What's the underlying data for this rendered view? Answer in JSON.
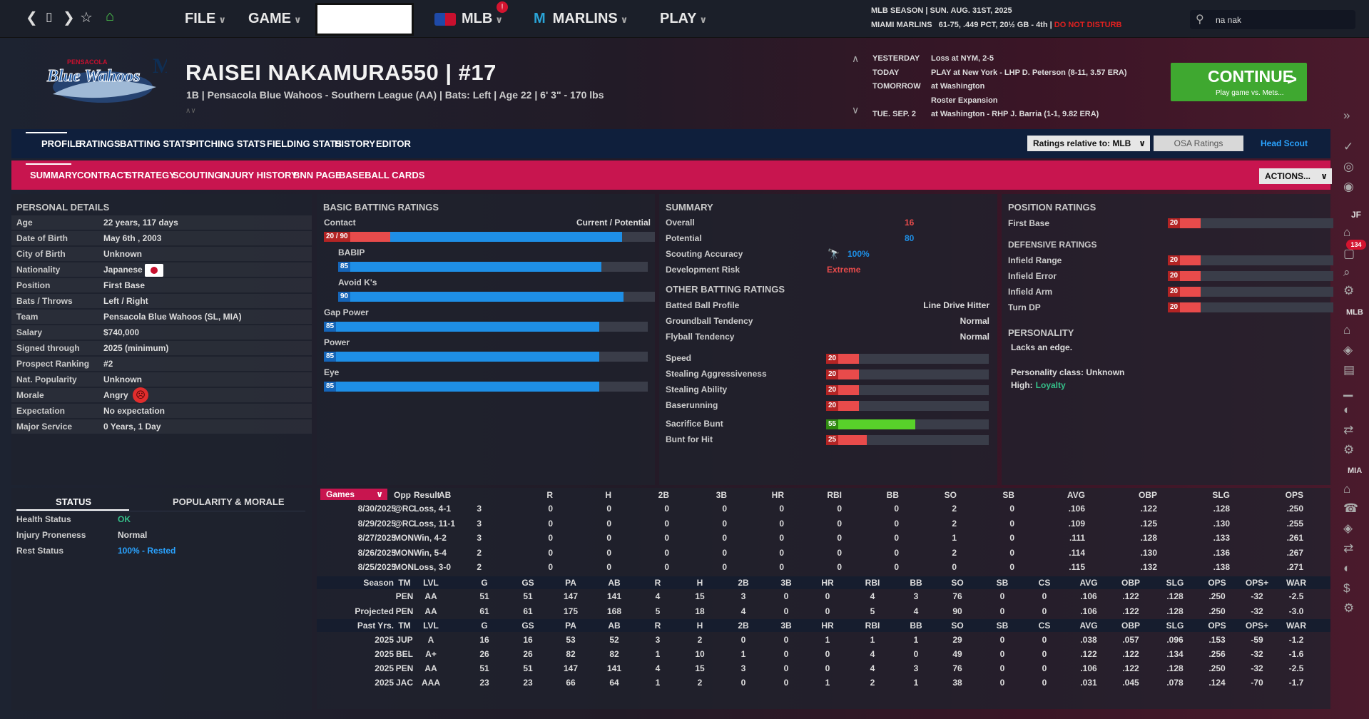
{
  "topbar": {
    "file": "FILE",
    "game": "GAME",
    "mlb": "MLB",
    "mlb_badge": "!",
    "marlins": "MARLINS",
    "play": "PLAY",
    "search_value": "na nak"
  },
  "season": {
    "line1": "MLB SEASON  |  SUN. AUG. 31ST, 2025",
    "team": "MIAMI MARLINS",
    "record": "61-75, .449 PCT, 20½ GB - 4th",
    "dnd": "DO NOT DISTURB"
  },
  "player": {
    "name": "RAISEI NAKAMURA550  |  #17",
    "info": "1B | Pensacola Blue Wahoos - Southern League (AA)  |  Bats: Left  |  Age 22  |  6' 3\" - 170 lbs",
    "logo_text": "Blue Wahoos",
    "logo_sub": "PENSACOLA"
  },
  "schedule": [
    {
      "day": "YESTERDAY",
      "text": "Loss at NYM, 2-5"
    },
    {
      "day": "TODAY",
      "text": "PLAY at New York - LHP D. Peterson (8-11, 3.57 ERA)"
    },
    {
      "day": "TOMORROW",
      "text": "at Washington"
    },
    {
      "day": "",
      "text": "Roster Expansion"
    },
    {
      "day": "TUE. SEP. 2",
      "text": "at Washington - RHP J. Barria (1-1, 9.82 ERA)"
    }
  ],
  "continue": {
    "label": "CONTINUE",
    "sub": "Play game vs. Mets..."
  },
  "tabs1": [
    "PROFILE",
    "RATINGS",
    "BATTING STATS",
    "PITCHING STATS",
    "FIELDING STATS",
    "HISTORY",
    "EDITOR"
  ],
  "tabs2": [
    "SUMMARY",
    "CONTRACT",
    "STRATEGY",
    "SCOUTING",
    "INJURY HISTORY",
    "BNN PAGE",
    "BASEBALL CARDS"
  ],
  "ratings_relative": "Ratings relative to: MLB",
  "osa_ratings": "OSA Ratings",
  "head_scout": "Head Scout",
  "actions": "ACTIONS...",
  "personal": {
    "title": "PERSONAL DETAILS",
    "rows": [
      [
        "Age",
        "22 years, 117 days"
      ],
      [
        "Date of Birth",
        "May 6th , 2003"
      ],
      [
        "City of Birth",
        "Unknown"
      ],
      [
        "Nationality",
        "Japanese"
      ],
      [
        "Position",
        "First Base"
      ],
      [
        "Bats / Throws",
        "Left / Right"
      ],
      [
        "Team",
        "Pensacola Blue Wahoos (SL, MIA)"
      ],
      [
        "Salary",
        "$740,000"
      ],
      [
        "Signed through",
        "2025 (minimum)"
      ],
      [
        "Prospect Ranking",
        "#2"
      ],
      [
        "Nat. Popularity",
        "Unknown"
      ],
      [
        "Morale",
        "Angry"
      ],
      [
        "Expectation",
        "No expectation"
      ],
      [
        "Major Service",
        "0 Years, 1 Day"
      ]
    ]
  },
  "batting": {
    "title": "BASIC BATTING RATINGS",
    "cur_pot": "Current / Potential",
    "items": [
      {
        "label": "Contact",
        "value": "20 / 90",
        "cur": 20,
        "pot": 90
      },
      {
        "label": "BABIP",
        "value": "85",
        "cur": 85,
        "pot": 85
      },
      {
        "label": "Avoid K's",
        "value": "90",
        "cur": 90,
        "pot": 90
      },
      {
        "label": "Gap Power",
        "value": "85",
        "cur": 85,
        "pot": 85
      },
      {
        "label": "Power",
        "value": "85",
        "cur": 85,
        "pot": 85
      },
      {
        "label": "Eye",
        "value": "85",
        "cur": 85,
        "pot": 85
      }
    ]
  },
  "summary": {
    "title": "SUMMARY",
    "overall_label": "Overall",
    "overall": "16",
    "potential_label": "Potential",
    "potential": "80",
    "scout_label": "Scouting Accuracy",
    "scout": "100%",
    "risk_label": "Development Risk",
    "risk": "Extreme",
    "other_title": "OTHER BATTING RATINGS",
    "other": [
      [
        "Batted Ball Profile",
        "Line Drive Hitter"
      ],
      [
        "Groundball Tendency",
        "Normal"
      ],
      [
        "Flyball Tendency",
        "Normal"
      ]
    ],
    "run": [
      {
        "label": "Speed",
        "value": "20",
        "v": 20
      },
      {
        "label": "Stealing Aggressiveness",
        "value": "20",
        "v": 20
      },
      {
        "label": "Stealing Ability",
        "value": "20",
        "v": 20
      },
      {
        "label": "Baserunning",
        "value": "20",
        "v": 20
      },
      {
        "label": "Sacrifice Bunt",
        "value": "55",
        "v": 55
      },
      {
        "label": "Bunt for Hit",
        "value": "25",
        "v": 25
      }
    ]
  },
  "position": {
    "title": "POSITION RATINGS",
    "items": [
      {
        "label": "First Base",
        "value": "20",
        "v": 20
      }
    ],
    "def_title": "DEFENSIVE RATINGS",
    "def": [
      {
        "label": "Infield Range",
        "value": "20",
        "v": 20
      },
      {
        "label": "Infield Error",
        "value": "20",
        "v": 20
      },
      {
        "label": "Infield Arm",
        "value": "20",
        "v": 20
      },
      {
        "label": "Turn DP",
        "value": "20",
        "v": 20
      }
    ],
    "pers_title": "PERSONALITY",
    "pers_text": "Lacks an edge.",
    "pers_class": "Personality class: Unknown",
    "high_label": "High:",
    "high": "Loyalty"
  },
  "status": {
    "tab1": "STATUS",
    "tab2": "POPULARITY & MORALE",
    "rows": [
      [
        "Health Status",
        "OK"
      ],
      [
        "Injury Proneness",
        "Normal"
      ],
      [
        "Rest Status",
        "100% - Rested"
      ]
    ]
  },
  "games": {
    "select": "Games",
    "head": [
      "Opp",
      "Result",
      "AB",
      "R",
      "H",
      "2B",
      "3B",
      "HR",
      "RBI",
      "BB",
      "SO",
      "SB",
      "AVG",
      "OBP",
      "SLG",
      "OPS"
    ],
    "rows": [
      [
        "8/30/2025",
        "@RC",
        "Loss, 4-1",
        "3",
        "0",
        "0",
        "0",
        "0",
        "0",
        "0",
        "0",
        "2",
        "0",
        ".106",
        ".122",
        ".128",
        ".250"
      ],
      [
        "8/29/2025",
        "@RC",
        "Loss, 11-1",
        "3",
        "0",
        "0",
        "0",
        "0",
        "0",
        "0",
        "0",
        "2",
        "0",
        ".109",
        ".125",
        ".130",
        ".255"
      ],
      [
        "8/27/2025",
        "MON",
        "Win, 4-2",
        "3",
        "0",
        "0",
        "0",
        "0",
        "0",
        "0",
        "0",
        "1",
        "0",
        ".111",
        ".128",
        ".133",
        ".261"
      ],
      [
        "8/26/2025",
        "MON",
        "Win, 5-4",
        "2",
        "0",
        "0",
        "0",
        "0",
        "0",
        "0",
        "0",
        "2",
        "0",
        ".114",
        ".130",
        ".136",
        ".267"
      ],
      [
        "8/25/2025",
        "MON",
        "Loss, 3-0",
        "2",
        "0",
        "0",
        "0",
        "0",
        "0",
        "0",
        "0",
        "0",
        "0",
        ".115",
        ".132",
        ".138",
        ".271"
      ]
    ]
  },
  "season_stats": {
    "head": [
      "Season",
      "TM",
      "LVL",
      "G",
      "GS",
      "PA",
      "AB",
      "R",
      "H",
      "2B",
      "3B",
      "HR",
      "RBI",
      "BB",
      "SO",
      "SB",
      "CS",
      "AVG",
      "OBP",
      "SLG",
      "OPS",
      "OPS+",
      "WAR"
    ],
    "rows": [
      [
        "",
        "PEN",
        "AA",
        "51",
        "51",
        "147",
        "141",
        "4",
        "15",
        "3",
        "0",
        "0",
        "4",
        "3",
        "76",
        "0",
        "0",
        ".106",
        ".122",
        ".128",
        ".250",
        "-32",
        "-2.5"
      ],
      [
        "Projected",
        "PEN",
        "AA",
        "61",
        "61",
        "175",
        "168",
        "5",
        "18",
        "4",
        "0",
        "0",
        "5",
        "4",
        "90",
        "0",
        "0",
        ".106",
        ".122",
        ".128",
        ".250",
        "-32",
        "-3.0"
      ]
    ]
  },
  "past": {
    "head": [
      "Past Yrs.",
      "TM",
      "LVL",
      "G",
      "GS",
      "PA",
      "AB",
      "R",
      "H",
      "2B",
      "3B",
      "HR",
      "RBI",
      "BB",
      "SO",
      "SB",
      "CS",
      "AVG",
      "OBP",
      "SLG",
      "OPS",
      "OPS+",
      "WAR"
    ],
    "rows": [
      [
        "2025",
        "JUP",
        "A",
        "16",
        "16",
        "53",
        "52",
        "3",
        "2",
        "0",
        "0",
        "1",
        "1",
        "1",
        "29",
        "0",
        "0",
        ".038",
        ".057",
        ".096",
        ".153",
        "-59",
        "-1.2"
      ],
      [
        "2025",
        "BEL",
        "A+",
        "26",
        "26",
        "82",
        "82",
        "1",
        "10",
        "1",
        "0",
        "0",
        "4",
        "0",
        "49",
        "0",
        "0",
        ".122",
        ".122",
        ".134",
        ".256",
        "-32",
        "-1.6"
      ],
      [
        "2025",
        "PEN",
        "AA",
        "51",
        "51",
        "147",
        "141",
        "4",
        "15",
        "3",
        "0",
        "0",
        "4",
        "3",
        "76",
        "0",
        "0",
        ".106",
        ".122",
        ".128",
        ".250",
        "-32",
        "-2.5"
      ],
      [
        "2025",
        "JAC",
        "AAA",
        "23",
        "23",
        "66",
        "64",
        "1",
        "2",
        "0",
        "0",
        "1",
        "2",
        "1",
        "38",
        "0",
        "0",
        ".031",
        ".045",
        ".078",
        ".124",
        "-70",
        "-1.7"
      ]
    ]
  },
  "sidebar": {
    "jf": "JF",
    "notif": "134",
    "mlb": "MLB",
    "mia": "MIA"
  },
  "colors": {
    "blue": "#1e8fe6",
    "red": "#e84b4b",
    "green": "#58d12a",
    "accent": "#c8154f"
  }
}
